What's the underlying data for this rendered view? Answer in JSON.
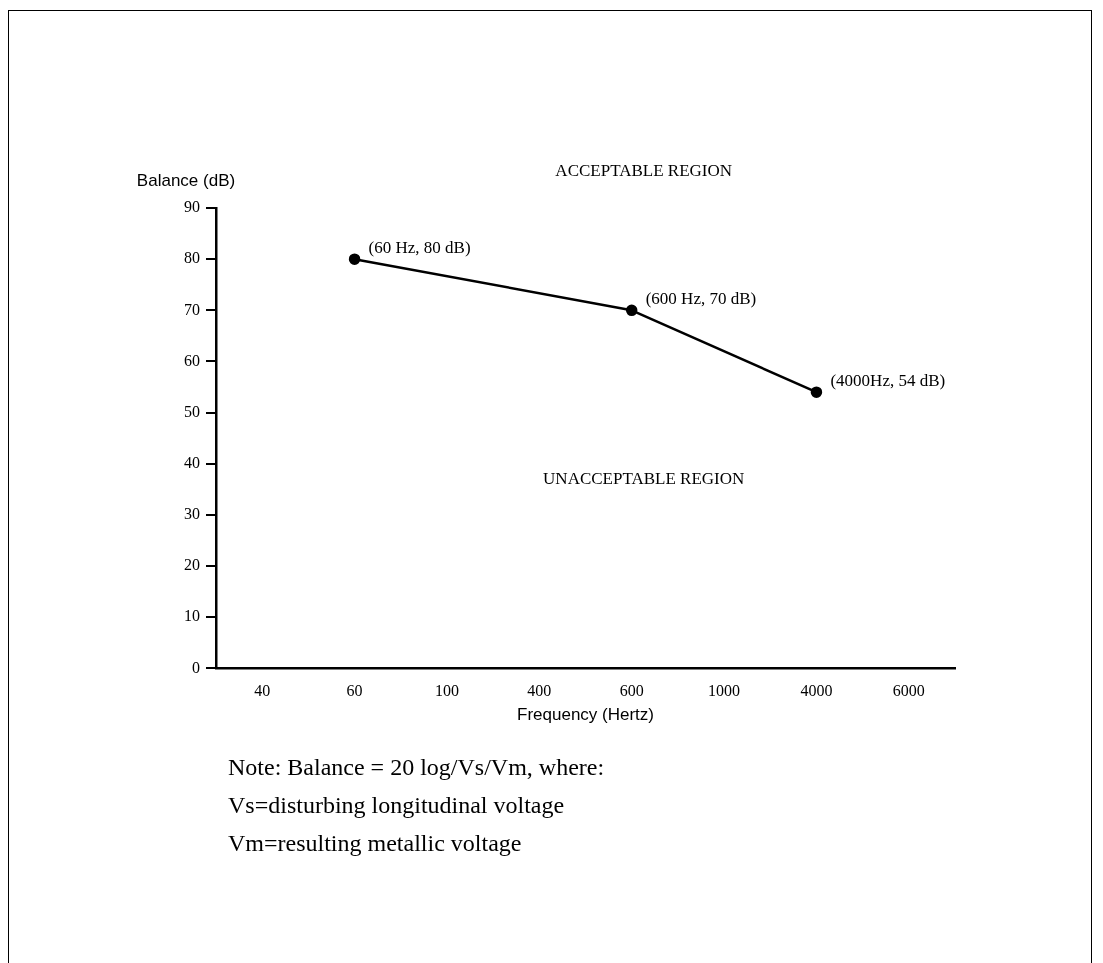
{
  "chart_data": {
    "type": "line",
    "xlabel": "Frequency (Hertz)",
    "ylabel": "Balance (dB)",
    "categories": [
      "40",
      "60",
      "100",
      "400",
      "600",
      "1000",
      "4000",
      "6000"
    ],
    "series": [
      {
        "color": "#000000",
        "values": [
          null,
          80,
          null,
          null,
          70,
          null,
          54,
          null
        ]
      }
    ],
    "ylim": [
      0,
      90
    ],
    "yticks": [
      0,
      10,
      20,
      30,
      40,
      50,
      60,
      70,
      80,
      90
    ],
    "grid": false,
    "legend": false,
    "marker": "circle",
    "line_style": "solid",
    "annotations": [
      "ACCEPTABLE REGION",
      "UNACCEPTABLE REGION",
      {
        "text": "(60 Hz, 80 dB)",
        "x": "60",
        "y": 80
      },
      {
        "text": "(600 Hz, 70 dB)",
        "x": "600",
        "y": 70
      },
      {
        "text": "(4000Hz, 54 dB)",
        "x": "4000",
        "y": 54
      },
      "Note: Balance = 20 log/Vs/Vm, where:",
      "Vs=disturbing longitudinal voltage",
      "Vm=resulting metallic voltage"
    ]
  }
}
